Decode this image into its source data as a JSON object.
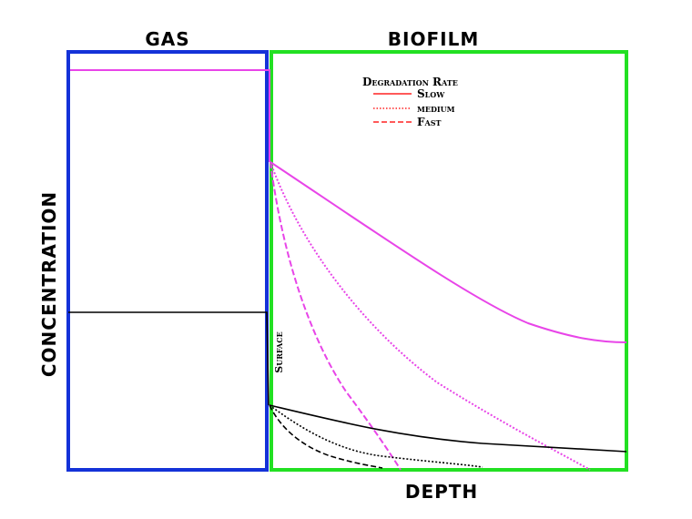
{
  "header": {
    "gas": "GAS",
    "biofilm": "BIOFILM"
  },
  "axes": {
    "y": "CONCENTRATION",
    "x": "DEPTH"
  },
  "surface": "Surface",
  "legend": {
    "title": "Degradation Rate",
    "items": [
      "Slow",
      "medium",
      "Fast"
    ]
  }
}
